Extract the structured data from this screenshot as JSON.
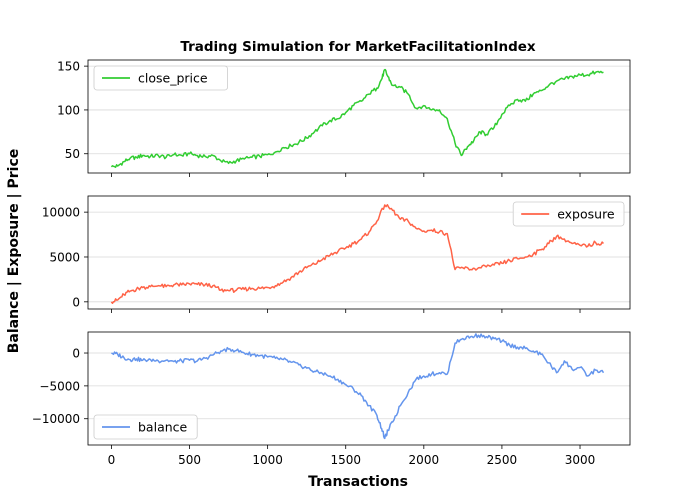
{
  "chart_data": {
    "type": "line",
    "title": "Trading Simulation for MarketFacilitationIndex",
    "xlabel": "Transactions",
    "ylabel": "Balance | Exposure | Price",
    "xlim": [
      -150,
      3320
    ],
    "x_ticks": [
      0,
      500,
      1000,
      1500,
      2000,
      2500,
      3000
    ],
    "grid": "horizontal",
    "panels": [
      {
        "name": "close_price",
        "color": "#32cd32",
        "legend_position": "upper-left",
        "ylim": [
          28,
          157
        ],
        "y_ticks": [
          50,
          100,
          150
        ],
        "points": [
          [
            0,
            35
          ],
          [
            40,
            36
          ],
          [
            80,
            41
          ],
          [
            120,
            45
          ],
          [
            160,
            46
          ],
          [
            200,
            48
          ],
          [
            250,
            47
          ],
          [
            300,
            48
          ],
          [
            350,
            46
          ],
          [
            400,
            49
          ],
          [
            450,
            48
          ],
          [
            500,
            50
          ],
          [
            550,
            48
          ],
          [
            600,
            47
          ],
          [
            650,
            48
          ],
          [
            700,
            42
          ],
          [
            750,
            39
          ],
          [
            800,
            42
          ],
          [
            850,
            44
          ],
          [
            900,
            46
          ],
          [
            950,
            47
          ],
          [
            1000,
            49
          ],
          [
            1050,
            52
          ],
          [
            1100,
            57
          ],
          [
            1150,
            59
          ],
          [
            1200,
            63
          ],
          [
            1250,
            68
          ],
          [
            1300,
            75
          ],
          [
            1350,
            82
          ],
          [
            1400,
            88
          ],
          [
            1450,
            90
          ],
          [
            1500,
            97
          ],
          [
            1550,
            105
          ],
          [
            1600,
            110
          ],
          [
            1650,
            118
          ],
          [
            1700,
            125
          ],
          [
            1730,
            135
          ],
          [
            1750,
            146
          ],
          [
            1770,
            138
          ],
          [
            1800,
            128
          ],
          [
            1850,
            126
          ],
          [
            1900,
            118
          ],
          [
            1950,
            102
          ],
          [
            2000,
            105
          ],
          [
            2050,
            100
          ],
          [
            2100,
            100
          ],
          [
            2150,
            90
          ],
          [
            2200,
            62
          ],
          [
            2240,
            48
          ],
          [
            2280,
            58
          ],
          [
            2320,
            65
          ],
          [
            2360,
            75
          ],
          [
            2400,
            72
          ],
          [
            2450,
            80
          ],
          [
            2500,
            95
          ],
          [
            2550,
            105
          ],
          [
            2600,
            112
          ],
          [
            2650,
            110
          ],
          [
            2700,
            118
          ],
          [
            2750,
            122
          ],
          [
            2800,
            128
          ],
          [
            2850,
            133
          ],
          [
            2900,
            135
          ],
          [
            2950,
            138
          ],
          [
            3000,
            140
          ],
          [
            3050,
            140
          ],
          [
            3100,
            143
          ],
          [
            3150,
            143
          ]
        ]
      },
      {
        "name": "exposure",
        "color": "#ff6347",
        "legend_position": "upper-right",
        "ylim": [
          -800,
          11800
        ],
        "y_ticks": [
          0,
          5000,
          10000
        ],
        "points": [
          [
            0,
            0
          ],
          [
            40,
            200
          ],
          [
            80,
            800
          ],
          [
            120,
            1200
          ],
          [
            160,
            1400
          ],
          [
            200,
            1600
          ],
          [
            250,
            1700
          ],
          [
            300,
            1800
          ],
          [
            350,
            1700
          ],
          [
            400,
            1900
          ],
          [
            450,
            1900
          ],
          [
            500,
            2000
          ],
          [
            550,
            1950
          ],
          [
            600,
            1900
          ],
          [
            650,
            1800
          ],
          [
            700,
            1300
          ],
          [
            750,
            1250
          ],
          [
            800,
            1300
          ],
          [
            850,
            1400
          ],
          [
            900,
            1500
          ],
          [
            950,
            1500
          ],
          [
            1000,
            1600
          ],
          [
            1050,
            1800
          ],
          [
            1100,
            2200
          ],
          [
            1150,
            2700
          ],
          [
            1200,
            3300
          ],
          [
            1250,
            3800
          ],
          [
            1300,
            4200
          ],
          [
            1350,
            4700
          ],
          [
            1400,
            5200
          ],
          [
            1450,
            5600
          ],
          [
            1500,
            6000
          ],
          [
            1550,
            6500
          ],
          [
            1600,
            7000
          ],
          [
            1650,
            7800
          ],
          [
            1700,
            9000
          ],
          [
            1750,
            10800
          ],
          [
            1800,
            10200
          ],
          [
            1850,
            9200
          ],
          [
            1900,
            9000
          ],
          [
            1950,
            8200
          ],
          [
            2000,
            7900
          ],
          [
            2050,
            8000
          ],
          [
            2100,
            7800
          ],
          [
            2150,
            7600
          ],
          [
            2200,
            3600
          ],
          [
            2250,
            3800
          ],
          [
            2300,
            3600
          ],
          [
            2350,
            3800
          ],
          [
            2400,
            3900
          ],
          [
            2450,
            4100
          ],
          [
            2500,
            4300
          ],
          [
            2550,
            4600
          ],
          [
            2600,
            4800
          ],
          [
            2650,
            5000
          ],
          [
            2700,
            5300
          ],
          [
            2750,
            5800
          ],
          [
            2800,
            6500
          ],
          [
            2850,
            7300
          ],
          [
            2900,
            7000
          ],
          [
            2950,
            6500
          ],
          [
            3000,
            6300
          ],
          [
            3050,
            6200
          ],
          [
            3100,
            6600
          ],
          [
            3150,
            6500
          ]
        ]
      },
      {
        "name": "balance",
        "color": "#6495ed",
        "legend_position": "lower-left",
        "ylim": [
          -14000,
          3200
        ],
        "y_ticks": [
          -10000,
          -5000,
          0
        ],
        "points": [
          [
            0,
            0
          ],
          [
            40,
            -200
          ],
          [
            80,
            -700
          ],
          [
            120,
            -1000
          ],
          [
            160,
            -900
          ],
          [
            200,
            -1100
          ],
          [
            250,
            -1000
          ],
          [
            300,
            -1200
          ],
          [
            350,
            -1100
          ],
          [
            400,
            -1300
          ],
          [
            450,
            -1200
          ],
          [
            500,
            -1100
          ],
          [
            550,
            -1200
          ],
          [
            600,
            -800
          ],
          [
            650,
            -300
          ],
          [
            700,
            300
          ],
          [
            750,
            600
          ],
          [
            800,
            400
          ],
          [
            850,
            0
          ],
          [
            900,
            -200
          ],
          [
            950,
            -400
          ],
          [
            1000,
            -600
          ],
          [
            1050,
            -800
          ],
          [
            1100,
            -1000
          ],
          [
            1150,
            -1400
          ],
          [
            1200,
            -1800
          ],
          [
            1250,
            -2300
          ],
          [
            1300,
            -2800
          ],
          [
            1350,
            -3100
          ],
          [
            1400,
            -3500
          ],
          [
            1450,
            -4000
          ],
          [
            1500,
            -4800
          ],
          [
            1550,
            -5500
          ],
          [
            1600,
            -6500
          ],
          [
            1650,
            -8000
          ],
          [
            1700,
            -9500
          ],
          [
            1730,
            -11500
          ],
          [
            1750,
            -13000
          ],
          [
            1770,
            -11800
          ],
          [
            1800,
            -10500
          ],
          [
            1850,
            -8000
          ],
          [
            1900,
            -6000
          ],
          [
            1950,
            -4000
          ],
          [
            2000,
            -3500
          ],
          [
            2050,
            -3200
          ],
          [
            2100,
            -3000
          ],
          [
            2150,
            -3200
          ],
          [
            2200,
            1500
          ],
          [
            2250,
            2200
          ],
          [
            2300,
            2500
          ],
          [
            2350,
            2700
          ],
          [
            2400,
            2500
          ],
          [
            2450,
            2200
          ],
          [
            2500,
            1800
          ],
          [
            2550,
            1200
          ],
          [
            2600,
            900
          ],
          [
            2650,
            700
          ],
          [
            2700,
            300
          ],
          [
            2750,
            -200
          ],
          [
            2800,
            -1500
          ],
          [
            2850,
            -3000
          ],
          [
            2900,
            -1200
          ],
          [
            2950,
            -2500
          ],
          [
            3000,
            -2200
          ],
          [
            3050,
            -3500
          ],
          [
            3100,
            -2600
          ],
          [
            3150,
            -3000
          ]
        ]
      }
    ]
  }
}
